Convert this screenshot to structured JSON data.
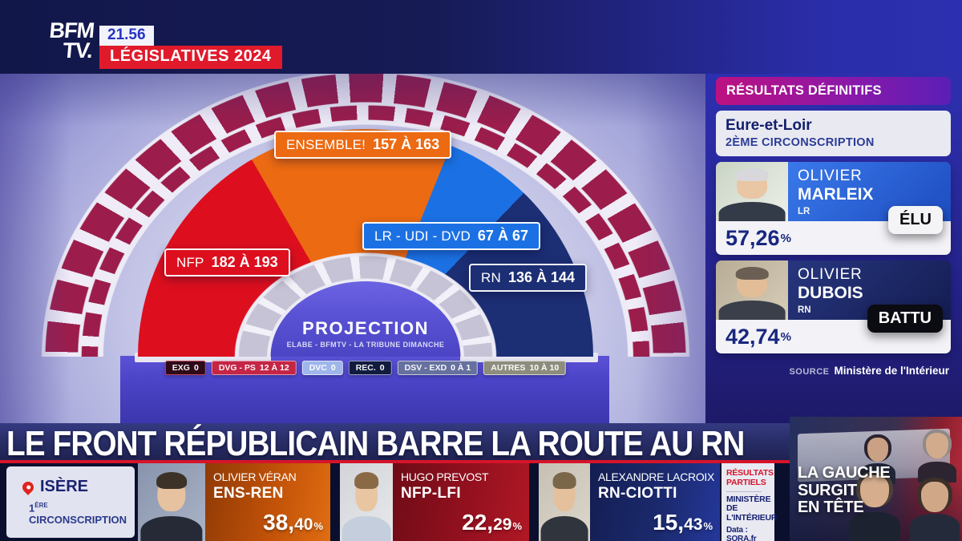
{
  "brand": {
    "logo_top": "BFM",
    "logo_bottom": "TV.",
    "time": "21.56",
    "banner": "LÉGISLATIVES 2024"
  },
  "chart_data": {
    "type": "pie",
    "variant": "hemicycle-seat-projection",
    "title": "PROJECTION",
    "subtitle": "ELABE - BFMTV - LA TRIBUNE DIMANCHE",
    "unit": "seats",
    "legend_position": "on-chart",
    "series": [
      {
        "name": "NFP",
        "seats_min": 182,
        "seats_max": 193,
        "label": "NFP 182 À 193",
        "color": "#dd0f1e",
        "angles": [
          0,
          60
        ]
      },
      {
        "name": "ENSEMBLE!",
        "seats_min": 157,
        "seats_max": 163,
        "label": "ENSEMBLE! 157 À 163",
        "color": "#ec6a12",
        "angles": [
          60,
          112
        ]
      },
      {
        "name": "LR - UDI - DVD",
        "seats_min": 67,
        "seats_max": 67,
        "label": "LR - UDI - DVD 67 À 67",
        "color": "#1b71e4",
        "angles": [
          112,
          134
        ]
      },
      {
        "name": "RN",
        "seats_min": 136,
        "seats_max": 144,
        "label": "RN 136 À 144",
        "color": "#1c2e74",
        "angles": [
          134,
          180
        ]
      }
    ],
    "minor_parties": [
      {
        "label": "EXG",
        "value": "0",
        "bg": "#2e0a18",
        "border": "#c24a5a"
      },
      {
        "label": "DVG - PS",
        "value": "12 À 12",
        "bg": "#c52646",
        "border": "#e89aaa"
      },
      {
        "label": "DVC",
        "value": "0",
        "bg": "#9fb6ea",
        "border": "#dfe6f8"
      },
      {
        "label": "REC.",
        "value": "0",
        "bg": "#101b3d",
        "border": "#9aa3c0"
      },
      {
        "label": "DSV - EXD",
        "value": "0 À 1",
        "bg": "#66719e",
        "border": "#c7cde0"
      },
      {
        "label": "AUTRES",
        "value": "10 À 10",
        "bg": "#8d8d7e",
        "border": "#d8d8cc"
      }
    ]
  },
  "hemicycle": {
    "title": "PROJECTION",
    "subtitle": "ELABE - BFMTV - LA TRIBUNE DIMANCHE",
    "labels": [
      {
        "id": "ensemble",
        "prefix": "ENSEMBLE!",
        "range": "157 À 163",
        "color": "#ec6a12"
      },
      {
        "id": "nfp",
        "prefix": "NFP",
        "range": "182 À 193",
        "color": "#dd0f1e"
      },
      {
        "id": "lr",
        "prefix": "LR - UDI - DVD",
        "range": "67 À 67",
        "color": "#1b71e4"
      },
      {
        "id": "rn",
        "prefix": "RN",
        "range": "136 À 144",
        "color": "#1c2e74"
      }
    ]
  },
  "results_panel": {
    "header": "RÉSULTATS DÉFINITIFS",
    "location": "Eure-et-Loir",
    "district": "2ÈME CIRCONSCRIPTION",
    "candidates": [
      {
        "first": "OLIVIER",
        "last": "MARLEIX",
        "party": "LR",
        "pct": "57,26",
        "pct_sym": "%",
        "status": "ÉLU"
      },
      {
        "first": "OLIVIER",
        "last": "DUBOIS",
        "party": "RN",
        "pct": "42,74",
        "pct_sym": "%",
        "status": "BATTU"
      }
    ],
    "source_label": "SOURCE",
    "source_value": "Ministère de l'Intérieur"
  },
  "headline": "LE FRONT RÉPUBLICAIN BARRE LA ROUTE AU RN",
  "ticker": {
    "location": {
      "name": "ISÈRE",
      "district_num": "1",
      "district_sup": "ÈRE",
      "district_rest": " CIRCONSCRIPTION"
    },
    "candidates": [
      {
        "name": "OLIVIER VÉRAN",
        "party": "ENS-REN",
        "pct_int": "38,",
        "pct_dec": "40",
        "pct_sym": "%"
      },
      {
        "name": "HUGO PREVOST",
        "party": "NFP-LFI",
        "pct_int": "22,",
        "pct_dec": "29",
        "pct_sym": "%"
      },
      {
        "name": "ALEXANDRE LACROIX",
        "party": "RN-CIOTTI",
        "pct_int": "15,",
        "pct_dec": "43",
        "pct_sym": "%"
      }
    ],
    "note": {
      "line1": "RÉSULTATS PARTIELS",
      "line2": "MINISTÈRE DE L'INTÉRIEUR",
      "line3": "Data : SORA.fr"
    },
    "video_title": {
      "line1": "LA GAUCHE",
      "line2": "SURGIT",
      "line3": "EN TÊTE"
    }
  }
}
